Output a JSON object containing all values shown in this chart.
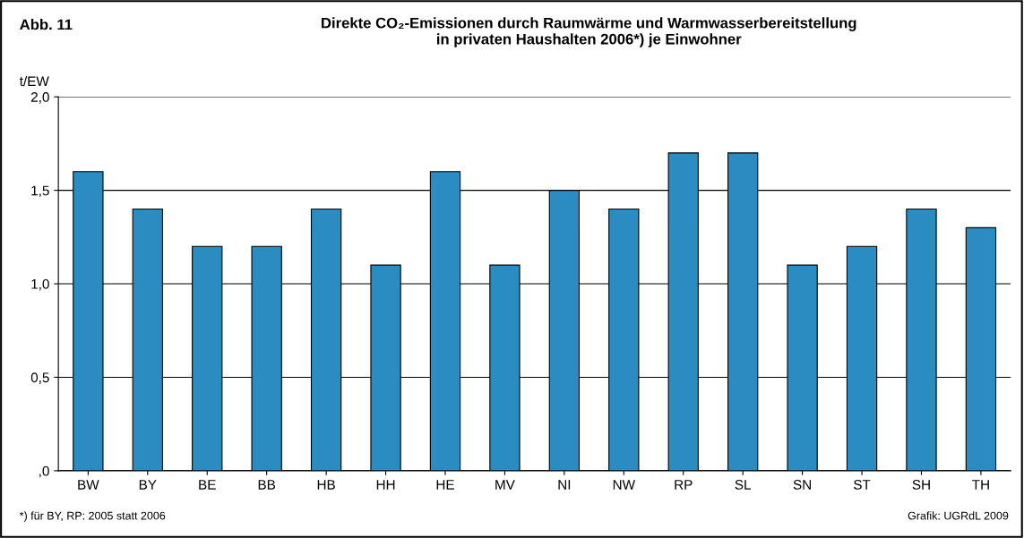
{
  "chart_data": {
    "type": "bar",
    "title": "Direkte CO₂-Emissionen durch Raumwärme und Warmwasserbereitstellung\nin privaten Haushalten 2006*) je Einwohner",
    "ylabel": "t/EW",
    "annotations": [
      "Abb. 11",
      "*) für BY, RP: 2005 statt 2006",
      "Grafik: UGRdL 2009"
    ],
    "categories": [
      "BW",
      "BY",
      "BE",
      "BB",
      "HB",
      "HH",
      "HE",
      "MV",
      "NI",
      "NW",
      "RP",
      "SL",
      "SN",
      "ST",
      "SH",
      "TH"
    ],
    "values": [
      1.6,
      1.4,
      1.2,
      1.2,
      1.4,
      1.1,
      1.6,
      1.1,
      1.5,
      1.4,
      1.7,
      1.7,
      1.1,
      1.2,
      1.4,
      1.3
    ],
    "color": "#2a8cc0",
    "ylim": [
      0,
      2
    ],
    "yticks": [
      {
        "value": 0,
        "label": ",0"
      },
      {
        "value": 0.5,
        "label": "0,5"
      },
      {
        "value": 1,
        "label": "1,0"
      },
      {
        "value": 1.5,
        "label": "1,5"
      },
      {
        "value": 2,
        "label": "2,0"
      }
    ],
    "grid": "y"
  }
}
